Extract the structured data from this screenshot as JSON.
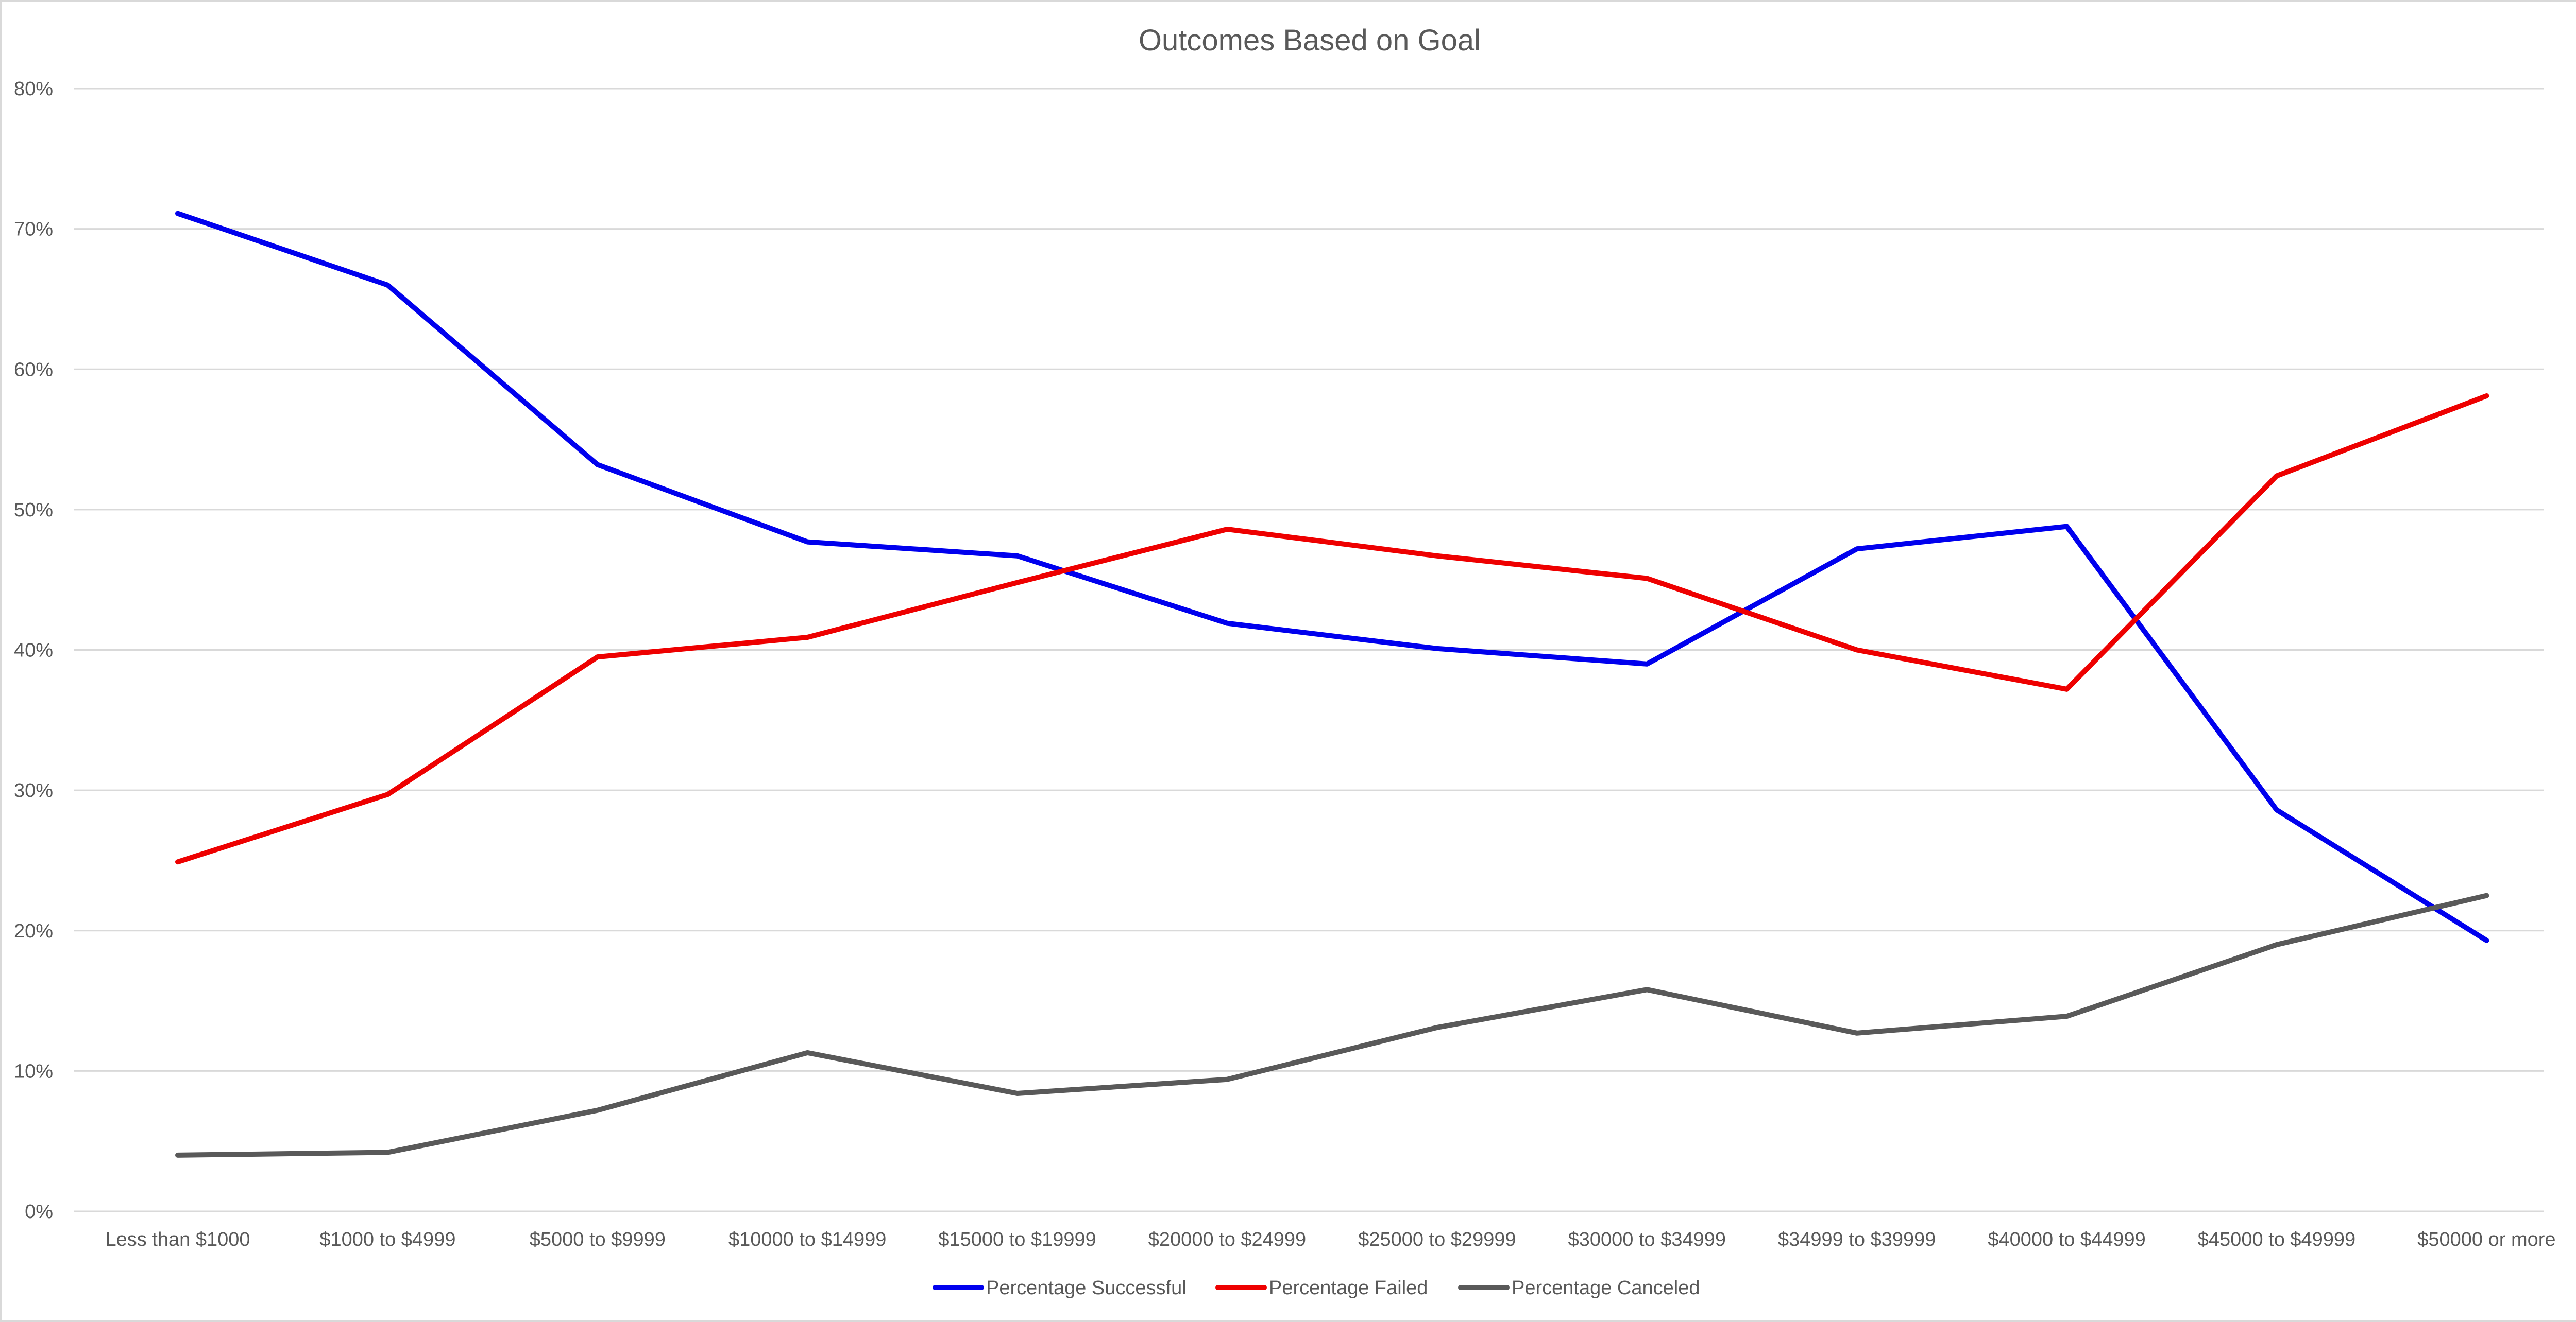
{
  "chart_data": {
    "type": "line",
    "title": "Outcomes Based on Goal",
    "xlabel": "",
    "ylabel": "",
    "ylim": [
      0,
      80
    ],
    "y_ticks": [
      "0%",
      "10%",
      "20%",
      "30%",
      "40%",
      "50%",
      "60%",
      "70%",
      "80%"
    ],
    "y_tick_values": [
      0,
      10,
      20,
      30,
      40,
      50,
      60,
      70,
      80
    ],
    "grid": true,
    "legend": "bottom",
    "categories": [
      "Less than $1000",
      "$1000 to $4999",
      "$5000 to $9999",
      "$10000 to $14999",
      "$15000 to $19999",
      "$20000 to $24999",
      "$25000 to $29999",
      "$30000 to $34999",
      "$34999 to $39999",
      "$40000 to $44999",
      "$45000 to $49999",
      "$50000 or more"
    ],
    "series": [
      {
        "name": "Percentage Successful",
        "color": "#0000ee",
        "values": [
          71.1,
          66.0,
          53.2,
          47.7,
          46.7,
          41.9,
          40.1,
          39.0,
          47.2,
          48.8,
          28.6,
          19.3
        ]
      },
      {
        "name": "Percentage Failed",
        "color": "#ee0000",
        "values": [
          24.9,
          29.7,
          39.5,
          40.9,
          44.8,
          48.6,
          46.7,
          45.1,
          40.0,
          37.2,
          52.4,
          58.1
        ]
      },
      {
        "name": "Percentage Canceled",
        "color": "#595959",
        "values": [
          4.0,
          4.2,
          7.2,
          11.3,
          8.4,
          9.4,
          13.1,
          15.8,
          12.7,
          13.9,
          19.0,
          22.5
        ]
      }
    ]
  }
}
